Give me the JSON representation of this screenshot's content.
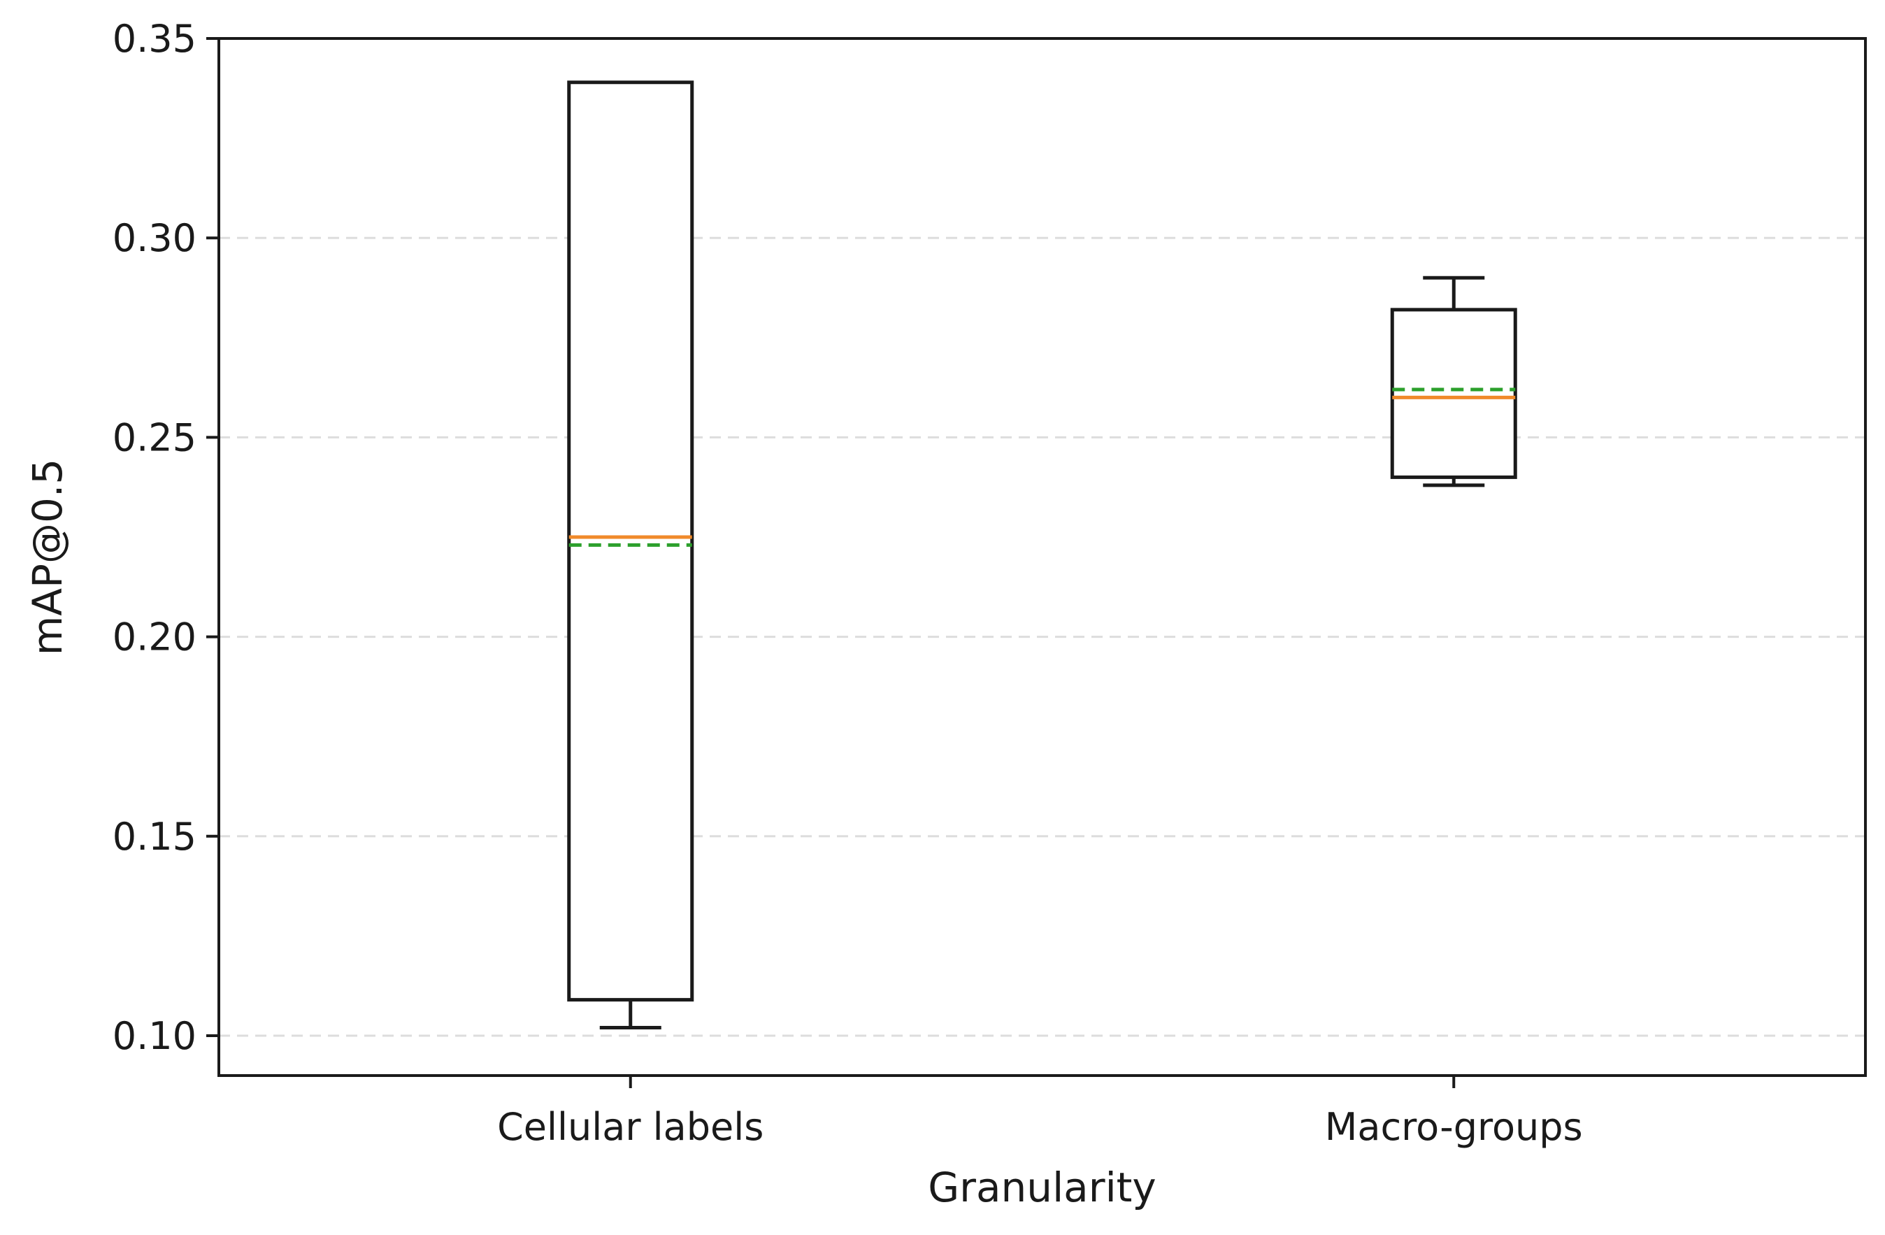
{
  "chart_data": {
    "type": "box",
    "xlabel": "Granularity",
    "ylabel": "mAP@0.5",
    "ylim": [
      0.09,
      0.35
    ],
    "yticks": [
      0.1,
      0.15,
      0.2,
      0.25,
      0.3,
      0.35
    ],
    "ytick_labels": [
      "0.10",
      "0.15",
      "0.20",
      "0.25",
      "0.30",
      "0.35"
    ],
    "grid": "horizontal dashed",
    "categories": [
      "Cellular labels",
      "Macro-groups"
    ],
    "boxes": [
      {
        "category": "Cellular labels",
        "whisker_low": 0.102,
        "q1": 0.109,
        "median": 0.225,
        "mean": 0.223,
        "q3": 0.339,
        "whisker_high": 0.339
      },
      {
        "category": "Macro-groups",
        "whisker_low": 0.238,
        "q1": 0.24,
        "median": 0.26,
        "mean": 0.262,
        "q3": 0.282,
        "whisker_high": 0.29
      }
    ],
    "colors": {
      "box": "#1a1a1a",
      "median": "#f08a2a",
      "mean": "#2ca02c",
      "grid": "#dddddd"
    }
  }
}
